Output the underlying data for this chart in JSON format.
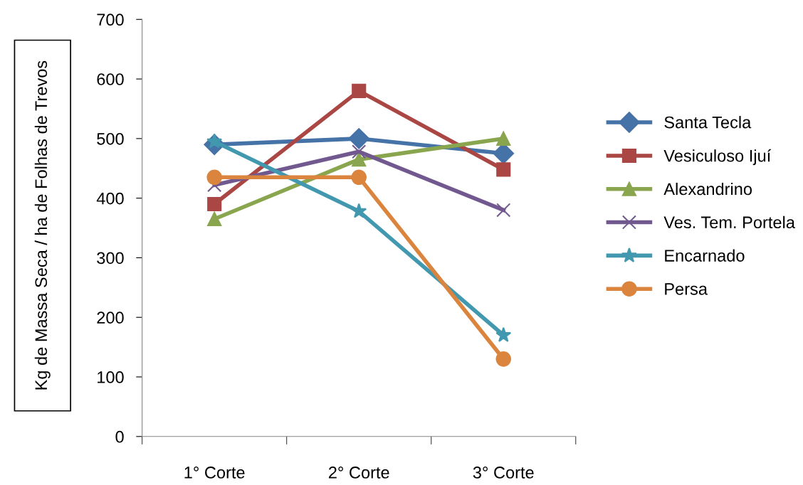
{
  "chart_data": {
    "type": "line",
    "ylabel": "Kg de Massa Seca / ha de Folhas de Trevos",
    "categories": [
      "1° Corte",
      "2° Corte",
      "3° Corte"
    ],
    "series": [
      {
        "name": "Santa Tecla",
        "color": "#4572a7",
        "marker": "diamond",
        "values": [
          490,
          500,
          475
        ]
      },
      {
        "name": "Vesiculoso Ijuí",
        "color": "#aa4643",
        "marker": "square",
        "values": [
          390,
          580,
          448
        ]
      },
      {
        "name": "Alexandrino",
        "color": "#89a54e",
        "marker": "triangle",
        "values": [
          365,
          465,
          500
        ]
      },
      {
        "name": "Ves. Tem. Portela",
        "color": "#71588f",
        "marker": "cross",
        "values": [
          422,
          478,
          380
        ]
      },
      {
        "name": "Encarnado",
        "color": "#4198af",
        "marker": "star",
        "values": [
          495,
          378,
          170
        ]
      },
      {
        "name": "Persa",
        "color": "#db843d",
        "marker": "circle",
        "values": [
          435,
          435,
          130
        ]
      }
    ],
    "ylim": [
      0,
      700
    ],
    "yticks": [
      0,
      100,
      200,
      300,
      400,
      500,
      600,
      700
    ],
    "grid": false,
    "legend": "right"
  }
}
